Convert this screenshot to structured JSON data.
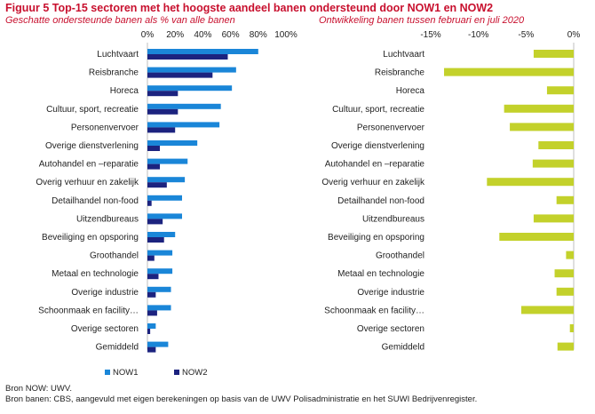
{
  "title": "Figuur 5 Top-15 sectoren met het hoogste aandeel banen ondersteund door NOW1 en NOW2",
  "footer": {
    "source1": "Bron NOW: UWV.",
    "source2": "Bron banen: CBS, aangevuld met eigen berekeningen op basis van de UWV Polisadministratie en het SUWI Bedrijvenregister."
  },
  "colors": {
    "now1": "#1a86d8",
    "now2": "#1c237f",
    "change": "#c3d12b",
    "title": "#c8102e"
  },
  "chart_data": [
    {
      "type": "bar",
      "orientation": "horizontal",
      "title": "Geschatte ondersteunde banen als % van alle banen",
      "categories": [
        "Luchtvaart",
        "Reisbranche",
        "Horeca",
        "Cultuur, sport, recreatie",
        "Personenvervoer",
        "Overige dienstverlening",
        "Autohandel en –reparatie",
        "Overig verhuur en zakelijk",
        "Detailhandel non-food",
        "Uitzendbureaus",
        "Beveiliging en opsporing",
        "Groothandel",
        "Metaal en technologie",
        "Overige industrie",
        "Schoonmaak en facility…",
        "Overige sectoren",
        "Gemiddeld"
      ],
      "xlim": [
        0,
        100
      ],
      "xticks": [
        "0%",
        "20%",
        "40%",
        "60%",
        "80%",
        "100%"
      ],
      "legend": "bottom",
      "series": [
        {
          "name": "NOW1",
          "values": [
            80,
            64,
            61,
            53,
            52,
            36,
            29,
            27,
            25,
            25,
            20,
            18,
            18,
            17,
            17,
            6,
            15
          ]
        },
        {
          "name": "NOW2",
          "values": [
            58,
            47,
            22,
            22,
            20,
            9,
            9,
            14,
            3,
            11,
            12,
            5,
            8,
            6,
            7,
            2,
            6
          ]
        }
      ]
    },
    {
      "type": "bar",
      "orientation": "horizontal",
      "title": "Ontwikkeling banen tussen februari en juli 2020",
      "categories": [
        "Luchtvaart",
        "Reisbranche",
        "Horeca",
        "Cultuur, sport, recreatie",
        "Personenvervoer",
        "Overige dienstverlening",
        "Autohandel en –reparatie",
        "Overig verhuur en zakelijk",
        "Detailhandel non-food",
        "Uitzendbureaus",
        "Beveiliging en opsporing",
        "Groothandel",
        "Metaal en technologie",
        "Overige industrie",
        "Schoonmaak en facility…",
        "Overige sectoren",
        "Gemiddeld"
      ],
      "xlim": [
        -16,
        0
      ],
      "xticks": [
        "-15%",
        "-10%",
        "-5%",
        "0%"
      ],
      "values": [
        -4.2,
        -13.6,
        -2.8,
        -7.3,
        -6.7,
        -3.7,
        -4.3,
        -9.1,
        -1.8,
        -4.2,
        -7.8,
        -0.8,
        -2.0,
        -1.8,
        -5.5,
        -0.4,
        -1.7
      ]
    }
  ]
}
